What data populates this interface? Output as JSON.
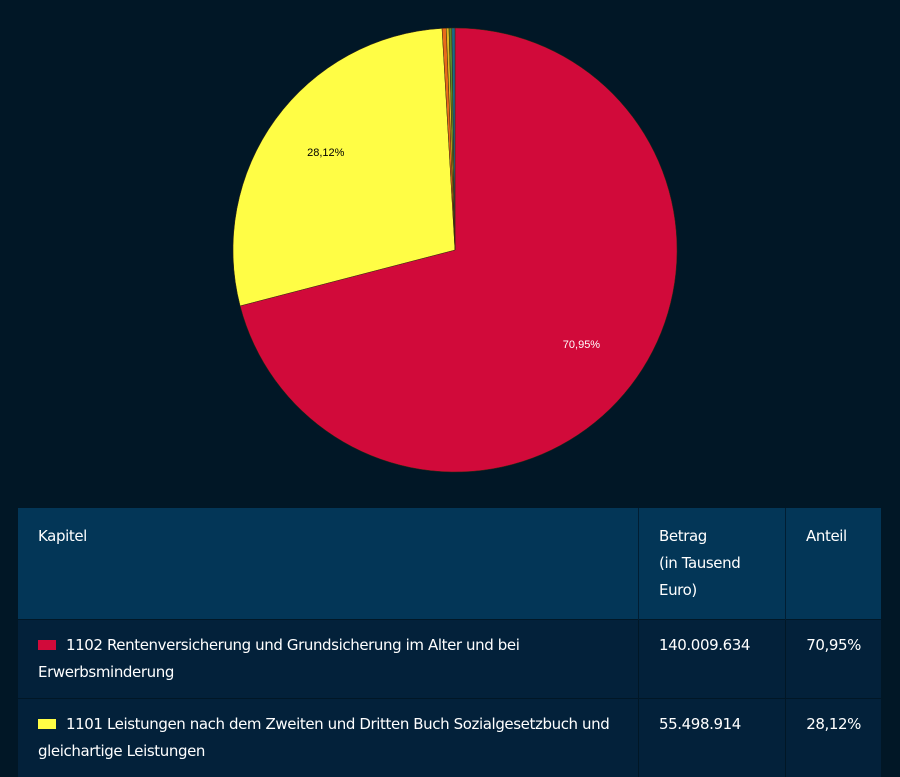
{
  "chart_data": {
    "type": "pie",
    "slices": [
      {
        "label": "1102",
        "value": 70.95,
        "data_label": "70,95%",
        "color": "#d10a3a"
      },
      {
        "label": "1101",
        "value": 28.12,
        "data_label": "28,12%",
        "color": "#fffd45"
      },
      {
        "value": 0.3,
        "color": "#e86a1a"
      },
      {
        "value": 0.2,
        "color": "#e0b820"
      },
      {
        "value": 0.2,
        "color": "#5a8a2a"
      },
      {
        "value": 0.23,
        "color": "#1a6a8a"
      }
    ]
  },
  "table": {
    "headers": {
      "kapitel": "Kapitel",
      "betrag_1": "Betrag",
      "betrag_2": "(in Tausend",
      "betrag_3": "Euro)",
      "anteil": "Anteil"
    },
    "rows": [
      {
        "color": "#d10a3a",
        "kapitel": "1102 Rentenversicherung und Grundsicherung im Alter und bei Erwerbsminderung",
        "betrag": "140.009.634",
        "anteil": "70,95%"
      },
      {
        "color": "#fffd45",
        "kapitel": "1101 Leistungen nach dem Zweiten und Dritten Buch Sozialgesetzbuch und gleichartige Leistungen",
        "betrag": "55.498.914",
        "anteil": "28,12%"
      }
    ]
  }
}
